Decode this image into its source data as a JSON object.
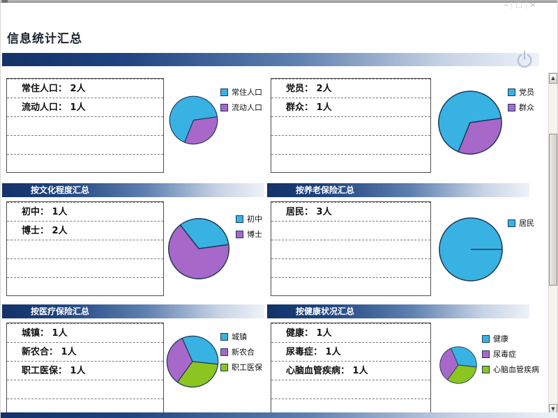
{
  "window": {
    "controls": {
      "minimize_glyph": "–",
      "maximize_glyph": "□",
      "close_glyph": "×"
    }
  },
  "header": {
    "title": "信息统计汇总"
  },
  "theme": {
    "outline": "#1d3a57",
    "blue": "#38b2e3",
    "purple": "#a768c9",
    "green": "#8cc520",
    "header_bar_dark": "#133268",
    "header_bar_light": "#eef2f8"
  },
  "scrollbar": {
    "up_glyph": "▲",
    "down_glyph": "▼"
  },
  "panels": [
    {
      "id": "population",
      "header": "",
      "rows": [
        "常住人口： 2人",
        "流动人口： 1人"
      ]
    },
    {
      "id": "party",
      "header": "",
      "rows": [
        "党员： 2人",
        "群众： 1人"
      ]
    },
    {
      "id": "education",
      "header": "按文化程度汇总",
      "rows": [
        "初中： 1人",
        "博士： 2人"
      ]
    },
    {
      "id": "pension",
      "header": "按养老保险汇总",
      "rows": [
        "居民： 3人"
      ]
    },
    {
      "id": "medical",
      "header": "按医疗保险汇总",
      "rows": [
        "城镇： 1人",
        "新农合： 1人",
        "职工医保： 1人"
      ]
    },
    {
      "id": "health",
      "header": "按健康状况汇总",
      "rows": [
        "健康： 1人",
        "尿毒症： 1人",
        "心脑血管疾病： 1人"
      ]
    }
  ],
  "chart_data": [
    {
      "type": "pie",
      "start_angle": 8,
      "legend_position": "right",
      "unit": "人",
      "slices": [
        {
          "label": "常住人口",
          "value": 2,
          "color": "#38b2e3"
        },
        {
          "label": "流动人口",
          "value": 1,
          "color": "#a768c9"
        }
      ]
    },
    {
      "type": "pie",
      "start_angle": 8,
      "legend_position": "right",
      "unit": "人",
      "slices": [
        {
          "label": "党员",
          "value": 2,
          "color": "#38b2e3"
        },
        {
          "label": "群众",
          "value": 1,
          "color": "#a768c9"
        }
      ]
    },
    {
      "type": "pie",
      "start_angle": 8,
      "legend_position": "right",
      "unit": "人",
      "slices": [
        {
          "label": "初中",
          "value": 1,
          "color": "#38b2e3"
        },
        {
          "label": "博士",
          "value": 2,
          "color": "#a768c9"
        }
      ]
    },
    {
      "type": "pie",
      "start_angle": 0,
      "legend_position": "right",
      "unit": "人",
      "slices": [
        {
          "label": "居民",
          "value": 3,
          "color": "#38b2e3"
        }
      ]
    },
    {
      "type": "pie",
      "start_angle": -6,
      "legend_position": "right",
      "unit": "人",
      "slices": [
        {
          "label": "城镇",
          "value": 1,
          "color": "#38b2e3"
        },
        {
          "label": "新农合",
          "value": 1,
          "color": "#a768c9"
        },
        {
          "label": "职工医保",
          "value": 1,
          "color": "#8cc520"
        }
      ]
    },
    {
      "type": "pie",
      "start_angle": -6,
      "legend_position": "right",
      "unit": "人",
      "slices": [
        {
          "label": "健康",
          "value": 1,
          "color": "#38b2e3"
        },
        {
          "label": "尿毒症",
          "value": 1,
          "color": "#a768c9"
        },
        {
          "label": "心脑血管疾病",
          "value": 1,
          "color": "#8cc520"
        }
      ]
    }
  ]
}
